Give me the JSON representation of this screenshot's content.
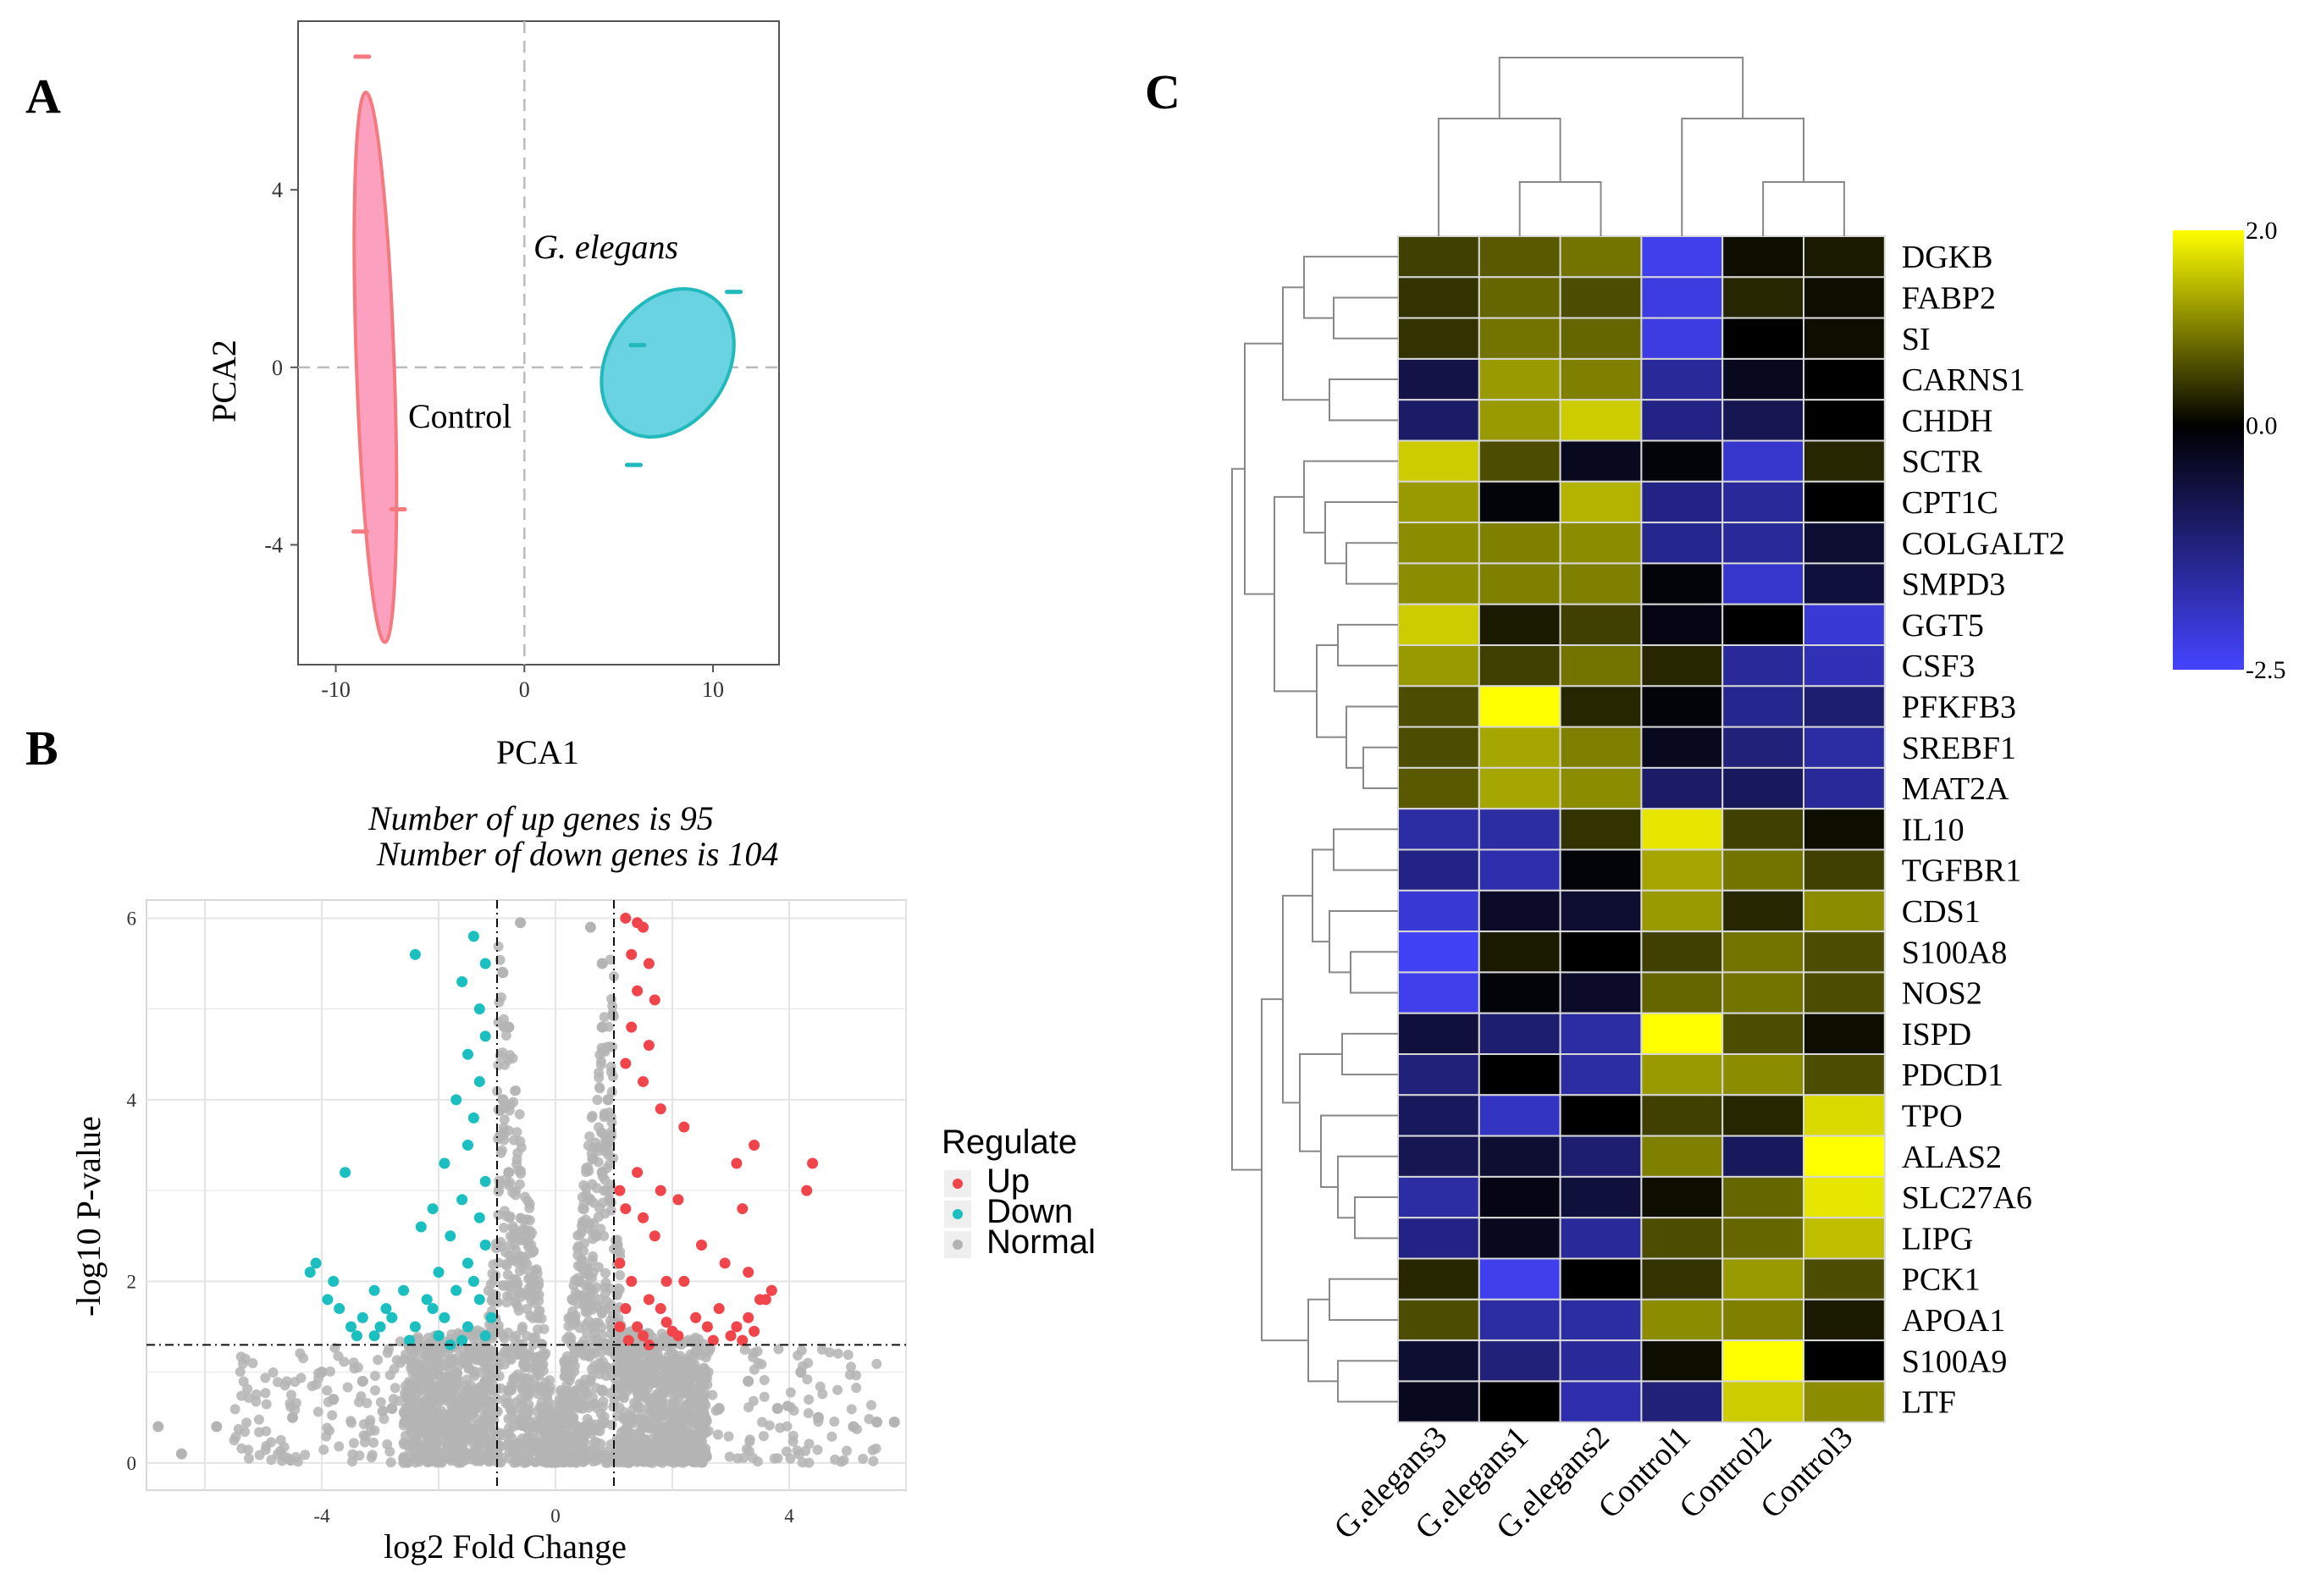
{
  "panels": {
    "a": "A",
    "b": "B",
    "c": "C"
  },
  "chart_data": [
    {
      "panel": "A",
      "type": "scatter",
      "xlabel": "PCA1",
      "ylabel": "PCA2",
      "xlim": [
        -12,
        13.5
      ],
      "ylim": [
        -6.7,
        7.8
      ],
      "xticks": [
        -10,
        0,
        10
      ],
      "yticks": [
        -4,
        0,
        4
      ],
      "reference_lines": {
        "x": 0,
        "y": 0,
        "style": "dashed"
      },
      "series": [
        {
          "name": "Control",
          "color": "#f47a7f",
          "fill": "#fba1bf",
          "points": [
            [
              -8.6,
              7.0
            ],
            [
              -8.7,
              -3.7
            ],
            [
              -6.7,
              -3.2
            ]
          ],
          "ellipse": {
            "center": [
              -7.9,
              0.0
            ],
            "rx": 1.0,
            "ry": 6.2,
            "angle": -2
          }
        },
        {
          "name": "G. elegans",
          "color": "#22b9bd",
          "fill": "#6ad3e2",
          "points": [
            [
              11.1,
              1.7
            ],
            [
              6.0,
              0.5
            ],
            [
              5.8,
              -2.2
            ]
          ],
          "ellipse": {
            "center": [
              7.6,
              0.1
            ],
            "rx": 4.2,
            "ry": 1.35,
            "angle": -57
          }
        }
      ],
      "annotations": [
        "G. elegans",
        "Control"
      ]
    },
    {
      "panel": "B",
      "type": "scatter",
      "title_lines": [
        "Number of up genes is 95",
        "Number of down genes is 104"
      ],
      "xlabel": "log2 Fold Change",
      "ylabel": "-log10 P-value",
      "xlim": [
        -7,
        6
      ],
      "ylim": [
        -0.3,
        6.2
      ],
      "xticks": [
        -4,
        0,
        4
      ],
      "yticks": [
        0,
        2,
        4,
        6
      ],
      "thresholds": {
        "x": [
          -1,
          1
        ],
        "y": 1.3
      },
      "legend": {
        "title": "Regulate",
        "position": "right",
        "entries": [
          {
            "label": "Up",
            "color": "#f0454b"
          },
          {
            "label": "Down",
            "color": "#1bbfc0"
          },
          {
            "label": "Normal",
            "color": "#b4b4b4"
          }
        ]
      },
      "series": [
        {
          "name": "Up",
          "color": "#f0454b",
          "count": 95,
          "points": [
            [
              1.2,
              6.0
            ],
            [
              1.4,
              5.95
            ],
            [
              1.5,
              5.9
            ],
            [
              1.3,
              5.6
            ],
            [
              1.6,
              5.5
            ],
            [
              1.4,
              5.2
            ],
            [
              1.7,
              5.1
            ],
            [
              1.3,
              4.8
            ],
            [
              1.6,
              4.6
            ],
            [
              1.5,
              4.2
            ],
            [
              1.2,
              4.4
            ],
            [
              1.8,
              3.9
            ],
            [
              2.2,
              3.7
            ],
            [
              3.4,
              3.5
            ],
            [
              4.4,
              3.3
            ],
            [
              3.1,
              3.3
            ],
            [
              1.4,
              3.2
            ],
            [
              1.8,
              3.0
            ],
            [
              4.3,
              3.0
            ],
            [
              1.1,
              3.0
            ],
            [
              2.1,
              2.9
            ],
            [
              1.2,
              2.8
            ],
            [
              1.5,
              2.7
            ],
            [
              3.2,
              2.8
            ],
            [
              1.7,
              2.5
            ],
            [
              2.5,
              2.4
            ],
            [
              1.1,
              2.2
            ],
            [
              2.9,
              2.2
            ],
            [
              3.3,
              2.1
            ],
            [
              1.3,
              2.0
            ],
            [
              1.9,
              2.0
            ],
            [
              2.2,
              2.0
            ],
            [
              3.7,
              1.9
            ],
            [
              3.5,
              1.8
            ],
            [
              1.6,
              1.8
            ],
            [
              2.8,
              1.7
            ],
            [
              3.6,
              1.8
            ],
            [
              1.2,
              1.7
            ],
            [
              2.4,
              1.6
            ],
            [
              3.3,
              1.6
            ],
            [
              1.9,
              1.55
            ],
            [
              1.4,
              1.5
            ],
            [
              3.1,
              1.5
            ],
            [
              2.1,
              1.4
            ],
            [
              2.7,
              1.35
            ],
            [
              1.5,
              1.4
            ],
            [
              3.0,
              1.4
            ],
            [
              1.25,
              1.35
            ],
            [
              3.4,
              1.45
            ],
            [
              2.6,
              1.5
            ],
            [
              1.8,
              1.7
            ],
            [
              2.0,
              1.45
            ],
            [
              1.6,
              1.3
            ],
            [
              3.2,
              1.35
            ],
            [
              1.1,
              1.5
            ]
          ]
        },
        {
          "name": "Down",
          "color": "#1bbfc0",
          "count": 104,
          "points": [
            [
              -2.4,
              5.6
            ],
            [
              -1.4,
              5.8
            ],
            [
              -1.2,
              5.5
            ],
            [
              -1.6,
              5.3
            ],
            [
              -1.3,
              5.0
            ],
            [
              -1.2,
              4.7
            ],
            [
              -1.5,
              4.5
            ],
            [
              -1.3,
              4.2
            ],
            [
              -1.7,
              4.0
            ],
            [
              -1.4,
              3.8
            ],
            [
              -3.6,
              3.2
            ],
            [
              -1.5,
              3.5
            ],
            [
              -1.9,
              3.3
            ],
            [
              -1.2,
              3.1
            ],
            [
              -1.6,
              2.9
            ],
            [
              -2.1,
              2.8
            ],
            [
              -1.3,
              2.7
            ],
            [
              -2.3,
              2.6
            ],
            [
              -1.8,
              2.5
            ],
            [
              -1.2,
              2.4
            ],
            [
              -4.1,
              2.2
            ],
            [
              -4.2,
              2.1
            ],
            [
              -3.8,
              2.0
            ],
            [
              -1.5,
              2.2
            ],
            [
              -2.0,
              2.1
            ],
            [
              -1.4,
              2.0
            ],
            [
              -3.1,
              1.9
            ],
            [
              -2.6,
              1.9
            ],
            [
              -1.7,
              1.9
            ],
            [
              -3.9,
              1.8
            ],
            [
              -2.2,
              1.8
            ],
            [
              -1.3,
              1.8
            ],
            [
              -3.7,
              1.7
            ],
            [
              -3.3,
              1.6
            ],
            [
              -2.9,
              1.7
            ],
            [
              -1.9,
              1.6
            ],
            [
              -3.5,
              1.5
            ],
            [
              -2.4,
              1.5
            ],
            [
              -1.5,
              1.5
            ],
            [
              -3.4,
              1.4
            ],
            [
              -2.0,
              1.4
            ],
            [
              -1.2,
              1.4
            ],
            [
              -3.1,
              1.4
            ],
            [
              -2.5,
              1.35
            ],
            [
              -1.6,
              1.35
            ],
            [
              -2.8,
              1.6
            ],
            [
              -3.0,
              1.5
            ],
            [
              -2.1,
              1.7
            ],
            [
              -1.8,
              1.3
            ],
            [
              -1.1,
              1.6
            ]
          ]
        },
        {
          "name": "Normal",
          "color": "#b4b4b4",
          "points": [
            [
              -0.2,
              0.1
            ],
            [
              0.2,
              0.1
            ],
            [
              -0.5,
              0.4
            ],
            [
              0.5,
              0.4
            ],
            [
              -0.8,
              0.8
            ],
            [
              0.8,
              0.8
            ],
            [
              -0.6,
              1.2
            ],
            [
              0.6,
              1.2
            ],
            [
              -0.4,
              2.0
            ],
            [
              0.4,
              2.0
            ],
            [
              -0.7,
              2.5
            ],
            [
              0.7,
              2.5
            ],
            [
              -0.8,
              3.2
            ],
            [
              0.8,
              3.2
            ],
            [
              -0.9,
              4.0
            ],
            [
              0.9,
              4.0
            ],
            [
              -0.8,
              4.8
            ],
            [
              0.8,
              4.8
            ],
            [
              -0.9,
              5.4
            ],
            [
              0.8,
              5.5
            ],
            [
              -0.6,
              5.95
            ],
            [
              0.6,
              5.9
            ],
            [
              -1.5,
              0.4
            ],
            [
              1.5,
              0.4
            ],
            [
              -2.2,
              0.3
            ],
            [
              2.2,
              0.3
            ],
            [
              -2.8,
              0.6
            ],
            [
              2.8,
              0.6
            ],
            [
              -3.3,
              0.9
            ],
            [
              3.3,
              0.9
            ],
            [
              -3.8,
              0.7
            ],
            [
              3.8,
              0.6
            ],
            [
              -4.5,
              0.5
            ],
            [
              4.5,
              0.5
            ],
            [
              -6.8,
              0.4
            ],
            [
              -5.8,
              0.4
            ],
            [
              -6.4,
              0.1
            ],
            [
              5.1,
              0.4
            ],
            [
              5.5,
              0.45
            ],
            [
              5.8,
              0.45
            ],
            [
              -1.2,
              0.9
            ],
            [
              1.2,
              0.9
            ],
            [
              -1.8,
              1.1
            ],
            [
              1.8,
              1.1
            ],
            [
              -0.3,
              1.6
            ],
            [
              0.3,
              1.6
            ],
            [
              -0.95,
              3.6
            ],
            [
              0.95,
              3.6
            ],
            [
              4.2,
              1.0
            ],
            [
              -4.0,
              1.0
            ]
          ]
        }
      ]
    },
    {
      "panel": "C",
      "type": "heatmap",
      "rows": [
        "DGKB",
        "FABP2",
        "SI",
        "CARNS1",
        "CHDH",
        "SCTR",
        "CPT1C",
        "COLGALT2",
        "SMPD3",
        "GGT5",
        "CSF3",
        "PFKFB3",
        "SREBF1",
        "MAT2A",
        "IL10",
        "TGFBR1",
        "CDS1",
        "S100A8",
        "NOS2",
        "ISPD",
        "PDCD1",
        "TPO",
        "ALAS2",
        "SLC27A6",
        "LIPG",
        "PCK1",
        "APOA1",
        "S100A9",
        "LTF"
      ],
      "columns": [
        "G.elegans3",
        "G.elegans1",
        "G.elegans2",
        "Control1",
        "Control2",
        "Control3"
      ],
      "values": [
        [
          0.5,
          0.7,
          0.9,
          -2.3,
          0.1,
          0.2
        ],
        [
          0.4,
          0.8,
          0.6,
          -2.2,
          0.3,
          0.1
        ],
        [
          0.4,
          0.9,
          0.8,
          -2.2,
          0.0,
          0.1
        ],
        [
          -0.7,
          1.2,
          1.0,
          -1.5,
          -0.3,
          0.0
        ],
        [
          -1.0,
          1.2,
          1.6,
          -1.3,
          -0.8,
          0.0
        ],
        [
          1.6,
          0.6,
          -0.3,
          -0.1,
          -2.0,
          0.3
        ],
        [
          1.2,
          -0.1,
          1.4,
          -1.3,
          -1.5,
          0.0
        ],
        [
          1.1,
          1.0,
          1.1,
          -1.4,
          -1.5,
          -0.5
        ],
        [
          1.1,
          1.0,
          1.0,
          -0.1,
          -2.0,
          -0.6
        ],
        [
          1.6,
          0.2,
          0.5,
          -0.2,
          0.0,
          -2.1
        ],
        [
          1.2,
          0.5,
          0.9,
          0.3,
          -1.5,
          -1.8
        ],
        [
          0.6,
          2.0,
          0.3,
          -0.1,
          -1.4,
          -1.1
        ],
        [
          0.6,
          1.3,
          1.0,
          -0.3,
          -1.2,
          -1.6
        ],
        [
          0.7,
          1.3,
          1.1,
          -1.0,
          -0.9,
          -1.5
        ],
        [
          -1.6,
          -1.6,
          0.4,
          1.8,
          0.5,
          0.1
        ],
        [
          -1.3,
          -1.7,
          -0.1,
          1.3,
          0.9,
          0.5
        ],
        [
          -2.1,
          -0.4,
          -0.5,
          1.2,
          0.3,
          1.1
        ],
        [
          -2.4,
          0.2,
          0.0,
          0.5,
          0.9,
          0.6
        ],
        [
          -2.3,
          -0.1,
          -0.4,
          0.8,
          0.9,
          0.6
        ],
        [
          -0.6,
          -1.1,
          -1.6,
          2.0,
          0.6,
          0.1
        ],
        [
          -1.2,
          0.0,
          -1.6,
          1.2,
          1.1,
          0.6
        ],
        [
          -0.9,
          -1.9,
          0.0,
          0.5,
          0.3,
          1.7
        ],
        [
          -0.8,
          -0.5,
          -1.1,
          1.0,
          -0.9,
          2.0
        ],
        [
          -1.6,
          -0.2,
          -0.6,
          0.1,
          0.8,
          1.8
        ],
        [
          -1.3,
          -0.3,
          -1.5,
          0.6,
          0.8,
          1.5
        ],
        [
          0.3,
          -2.3,
          0.0,
          0.4,
          1.2,
          0.6
        ],
        [
          0.6,
          -1.6,
          -1.6,
          1.1,
          1.0,
          0.2
        ],
        [
          -0.5,
          -1.2,
          -1.5,
          0.1,
          2.0,
          0.0
        ],
        [
          -0.3,
          0.0,
          -1.7,
          -1.2,
          1.6,
          1.1
        ]
      ],
      "colorbar": {
        "min": -2.5,
        "max": 2.0,
        "mid": 0.0,
        "ticks": [
          "2.0",
          "0.0",
          "-2.5"
        ],
        "colors": [
          "#4444ff",
          "#000000",
          "#ffff00"
        ]
      },
      "dendrogram": "hierarchical clustering of rows and columns"
    }
  ]
}
